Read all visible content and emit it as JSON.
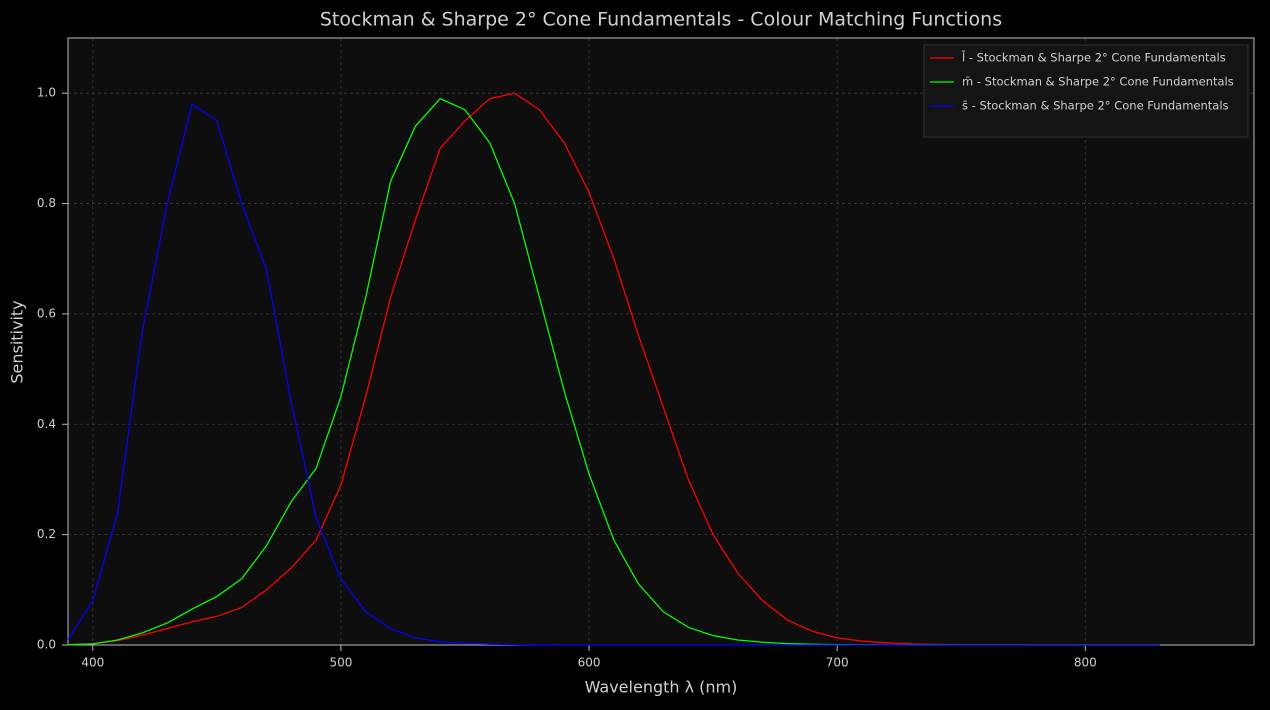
{
  "chart_data": {
    "type": "line",
    "title": "Stockman & Sharpe 2° Cone Fundamentals - Colour Matching Functions",
    "xlabel": "Wavelength λ (nm)",
    "ylabel": "Sensitivity",
    "x": [
      390,
      400,
      410,
      420,
      430,
      440,
      450,
      460,
      470,
      480,
      490,
      500,
      510,
      520,
      530,
      540,
      550,
      560,
      570,
      580,
      590,
      600,
      610,
      620,
      630,
      640,
      650,
      660,
      670,
      680,
      690,
      700,
      710,
      720,
      730,
      740,
      750,
      760,
      770,
      780,
      790,
      800,
      810,
      820,
      830
    ],
    "series": [
      {
        "name": "l̄ - Stockman & Sharpe 2° Cone Fundamentals",
        "color": "#ff0000",
        "values": [
          0.0004,
          0.002,
          0.008,
          0.018,
          0.03,
          0.042,
          0.052,
          0.068,
          0.1,
          0.14,
          0.19,
          0.29,
          0.45,
          0.63,
          0.77,
          0.9,
          0.95,
          0.99,
          1.0,
          0.97,
          0.91,
          0.82,
          0.7,
          0.56,
          0.43,
          0.3,
          0.2,
          0.13,
          0.08,
          0.045,
          0.025,
          0.013,
          0.007,
          0.004,
          0.002,
          0.001,
          0.0005,
          0.0003,
          0.0002,
          0.0001,
          0.0001,
          0.0001,
          0.0001,
          0.0001,
          0.0001
        ]
      },
      {
        "name": "m̄ - Stockman & Sharpe 2° Cone Fundamentals",
        "color": "#00ff00",
        "values": [
          0.0004,
          0.002,
          0.009,
          0.022,
          0.04,
          0.065,
          0.088,
          0.12,
          0.18,
          0.26,
          0.32,
          0.45,
          0.63,
          0.84,
          0.94,
          0.99,
          0.97,
          0.91,
          0.8,
          0.63,
          0.46,
          0.31,
          0.19,
          0.11,
          0.06,
          0.032,
          0.017,
          0.009,
          0.005,
          0.0025,
          0.0013,
          0.0007,
          0.0004,
          0.0002,
          0.0001,
          0.0001,
          0.0001,
          0.0001,
          0.0001,
          0.0001,
          0.0001,
          0.0001,
          0.0001,
          0.0001,
          0.0001
        ]
      },
      {
        "name": "s̄ - Stockman & Sharpe 2° Cone Fundamentals",
        "color": "#0000ff",
        "values": [
          0.01,
          0.08,
          0.24,
          0.57,
          0.8,
          0.98,
          0.95,
          0.8,
          0.68,
          0.44,
          0.23,
          0.12,
          0.06,
          0.03,
          0.013,
          0.006,
          0.003,
          0.0015,
          0.0007,
          0.0003,
          0,
          0,
          0,
          0,
          0,
          0,
          0,
          0,
          0,
          0,
          0,
          0,
          0,
          0,
          0,
          0,
          0,
          0,
          0,
          0,
          0,
          0,
          0,
          0,
          0
        ]
      }
    ],
    "xlim": [
      390,
      868
    ],
    "ylim": [
      0,
      1.1
    ],
    "xticks": [
      400,
      500,
      600,
      700,
      800
    ],
    "yticks": [
      {
        "value": 0,
        "label": "0.0"
      },
      0.2,
      0.4,
      0.6,
      0.8,
      {
        "value": 1,
        "label": "1.0"
      }
    ],
    "grid": true,
    "legend": "upper right"
  }
}
